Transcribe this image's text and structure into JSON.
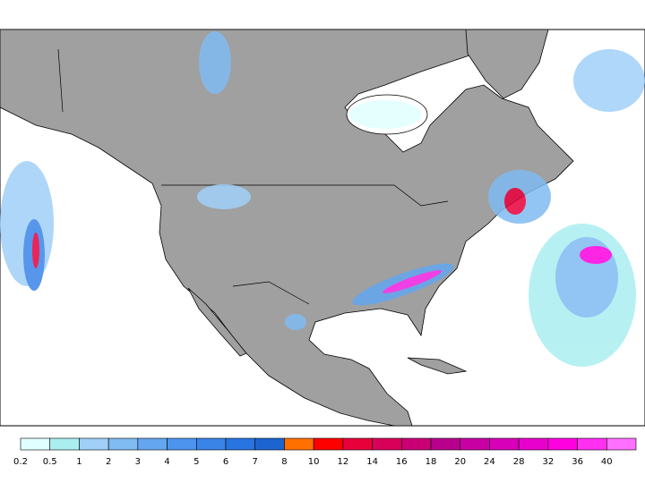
{
  "legend": {
    "bins": [
      {
        "label": 0.2,
        "color": "#e0ffff"
      },
      {
        "label": 0.5,
        "color": "#aaeef0"
      },
      {
        "label": 1,
        "color": "#a0d0f8"
      },
      {
        "label": 2,
        "color": "#80bbf2"
      },
      {
        "label": 3,
        "color": "#64a6f0"
      },
      {
        "label": 4,
        "color": "#4c94ee"
      },
      {
        "label": 5,
        "color": "#3a84e8"
      },
      {
        "label": 6,
        "color": "#2874e0"
      },
      {
        "label": 7,
        "color": "#1c64d0"
      },
      {
        "label": 8,
        "color": "#ff7000"
      },
      {
        "label": 10,
        "color": "#ff0000"
      },
      {
        "label": 12,
        "color": "#e8003a"
      },
      {
        "label": 14,
        "color": "#d80058"
      },
      {
        "label": 16,
        "color": "#c80074"
      },
      {
        "label": 18,
        "color": "#b8008c"
      },
      {
        "label": 20,
        "color": "#c800a4"
      },
      {
        "label": 24,
        "color": "#d800b8"
      },
      {
        "label": 28,
        "color": "#e800cc"
      },
      {
        "label": 32,
        "color": "#ff00e0"
      },
      {
        "label": 36,
        "color": "#ff30f0"
      },
      {
        "label": 40,
        "color": "#ff70ff"
      }
    ]
  }
}
